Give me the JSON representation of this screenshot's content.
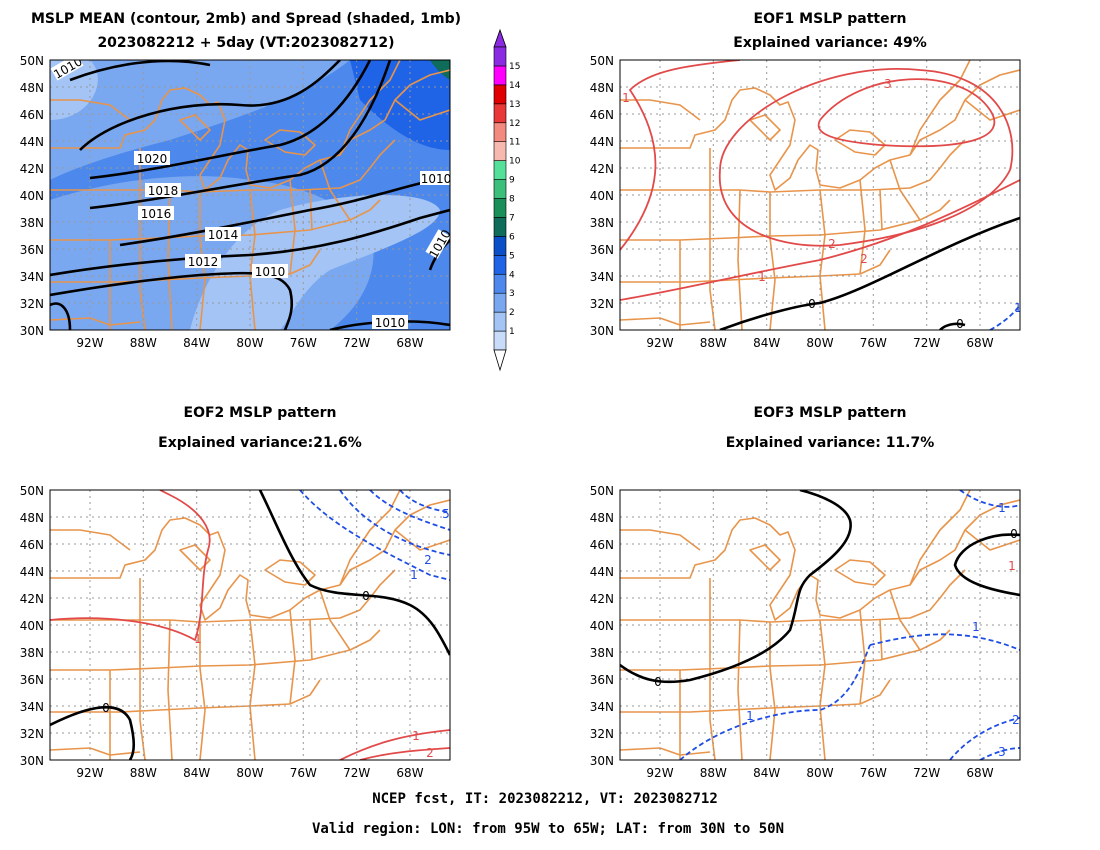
{
  "footer": {
    "line1": "NCEP fcst, IT: 2023082212, VT: 2023082712",
    "line2": "Valid region: LON: from 95W to 65W; LAT: from 30N to 50N"
  },
  "colorbar": {
    "labels": [
      "1",
      "2",
      "3",
      "4",
      "5",
      "6",
      "7",
      "8",
      "9",
      "10",
      "11",
      "12",
      "13",
      "14",
      "15"
    ],
    "colors": [
      "#c8dcfa",
      "#a3c4f5",
      "#7aa8f0",
      "#4d88ec",
      "#1f64e6",
      "#0a4fc8",
      "#0f6b5a",
      "#1a8f5a",
      "#3cbf7a",
      "#55e09a",
      "#f7b8b0",
      "#f28a80",
      "#e83838",
      "#e00000",
      "#ff00ff",
      "#8a2be2"
    ]
  },
  "panels": [
    {
      "title_lines": [
        "MSLP MEAN (contour, 2mb) and Spread (shaded, 1mb)",
        "2023082212 + 5day (VT:2023082712)"
      ],
      "lat_labels": [
        "50N",
        "48N",
        "46N",
        "44N",
        "42N",
        "40N",
        "38N",
        "36N",
        "34N",
        "32N",
        "30N"
      ],
      "lon_labels": [
        "92W",
        "88W",
        "84W",
        "80W",
        "76W",
        "72W",
        "68W"
      ],
      "contour_labels": [
        "1010",
        "1020",
        "1018",
        "1016",
        "1014",
        "1012",
        "1010",
        "1010",
        "1010",
        "1010"
      ]
    },
    {
      "title_lines": [
        "EOF1 MSLP pattern",
        "Explained variance: 49%"
      ],
      "lat_labels": [
        "50N",
        "48N",
        "46N",
        "44N",
        "42N",
        "40N",
        "38N",
        "36N",
        "34N",
        "32N",
        "30N"
      ],
      "lon_labels": [
        "92W",
        "88W",
        "84W",
        "80W",
        "76W",
        "72W",
        "68W"
      ],
      "contour_labels": [
        "3",
        "2",
        "1",
        "0",
        "0",
        "1",
        "2",
        "1"
      ]
    },
    {
      "title_lines": [
        "EOF2 MSLP pattern",
        "Explained variance:21.6%"
      ],
      "lat_labels": [
        "50N",
        "48N",
        "46N",
        "44N",
        "42N",
        "40N",
        "38N",
        "36N",
        "34N",
        "32N",
        "30N"
      ],
      "lon_labels": [
        "92W",
        "88W",
        "84W",
        "80W",
        "76W",
        "72W",
        "68W"
      ],
      "contour_labels": [
        "1",
        "0",
        "0",
        "1",
        "2",
        "1",
        "2",
        "5"
      ]
    },
    {
      "title_lines": [
        "EOF3 MSLP pattern",
        "Explained variance: 11.7%"
      ],
      "lat_labels": [
        "50N",
        "48N",
        "46N",
        "44N",
        "42N",
        "40N",
        "38N",
        "36N",
        "34N",
        "32N",
        "30N"
      ],
      "lon_labels": [
        "92W",
        "88W",
        "84W",
        "80W",
        "76W",
        "72W",
        "68W"
      ],
      "contour_labels": [
        "0",
        "0",
        "1",
        "1",
        "1",
        "2",
        "3",
        "1"
      ]
    }
  ]
}
